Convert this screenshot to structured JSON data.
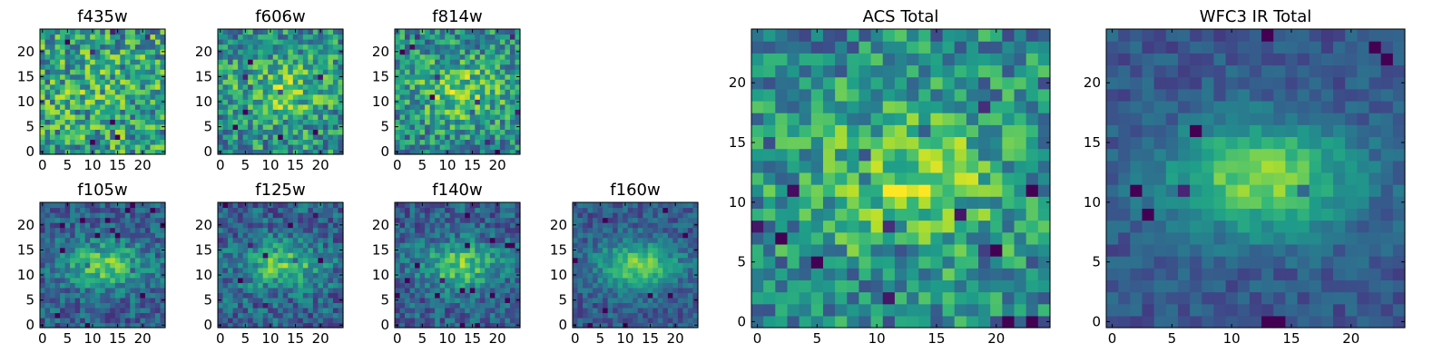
{
  "chart_data": [
    {
      "type": "heatmap",
      "title": "f435w",
      "pattern": "noise",
      "signal": 0.15,
      "noise": 0.32,
      "seed": 11,
      "grid": 25,
      "xticks": [
        "0",
        "5",
        "10",
        "15",
        "20"
      ],
      "yticks": [
        "0",
        "5",
        "10",
        "15",
        "20"
      ]
    },
    {
      "type": "heatmap",
      "title": "f606w",
      "pattern": "noise",
      "signal": 0.45,
      "noise": 0.28,
      "seed": 23,
      "grid": 25,
      "xticks": [
        "0",
        "5",
        "10",
        "15",
        "20"
      ],
      "yticks": [
        "0",
        "5",
        "10",
        "15",
        "20"
      ]
    },
    {
      "type": "heatmap",
      "title": "f814w",
      "pattern": "noise",
      "signal": 0.55,
      "noise": 0.27,
      "seed": 37,
      "grid": 25,
      "xticks": [
        "0",
        "5",
        "10",
        "15",
        "20"
      ],
      "yticks": [
        "0",
        "5",
        "10",
        "15",
        "20"
      ]
    },
    {
      "type": "heatmap",
      "title": "f105w",
      "pattern": "source",
      "signal": 0.8,
      "noise": 0.18,
      "seed": 41,
      "grid": 25,
      "xticks": [
        "0",
        "5",
        "10",
        "15",
        "20"
      ],
      "yticks": [
        "0",
        "5",
        "10",
        "15",
        "20"
      ]
    },
    {
      "type": "heatmap",
      "title": "f125w",
      "pattern": "source",
      "signal": 0.75,
      "noise": 0.2,
      "seed": 53,
      "grid": 25,
      "xticks": [
        "0",
        "5",
        "10",
        "15",
        "20"
      ],
      "yticks": [
        "0",
        "5",
        "10",
        "15",
        "20"
      ]
    },
    {
      "type": "heatmap",
      "title": "f140w",
      "pattern": "source",
      "signal": 0.8,
      "noise": 0.18,
      "seed": 67,
      "grid": 25,
      "xticks": [
        "0",
        "5",
        "10",
        "15",
        "20"
      ],
      "yticks": [
        "0",
        "5",
        "10",
        "15",
        "20"
      ]
    },
    {
      "type": "heatmap",
      "title": "f160w",
      "pattern": "source",
      "signal": 0.9,
      "noise": 0.14,
      "seed": 79,
      "grid": 25,
      "xticks": [
        "0",
        "5",
        "10",
        "15",
        "20"
      ],
      "yticks": [
        "0",
        "5",
        "10",
        "15",
        "20"
      ]
    },
    {
      "type": "heatmap",
      "title": "ACS Total",
      "pattern": "noise",
      "signal": 0.55,
      "noise": 0.26,
      "seed": 83,
      "grid": 25,
      "xticks": [
        "0",
        "5",
        "10",
        "15",
        "20"
      ],
      "yticks": [
        "0",
        "5",
        "10",
        "15",
        "20"
      ]
    },
    {
      "type": "heatmap",
      "title": "WFC3 IR Total",
      "pattern": "source",
      "signal": 1.0,
      "noise": 0.1,
      "seed": 97,
      "grid": 25,
      "xticks": [
        "0",
        "5",
        "10",
        "15",
        "20"
      ],
      "yticks": [
        "0",
        "5",
        "10",
        "15",
        "20"
      ]
    }
  ],
  "colormap": "viridis",
  "colors": {
    "low": "#440154",
    "mid": "#21918c",
    "high": "#fde725"
  }
}
